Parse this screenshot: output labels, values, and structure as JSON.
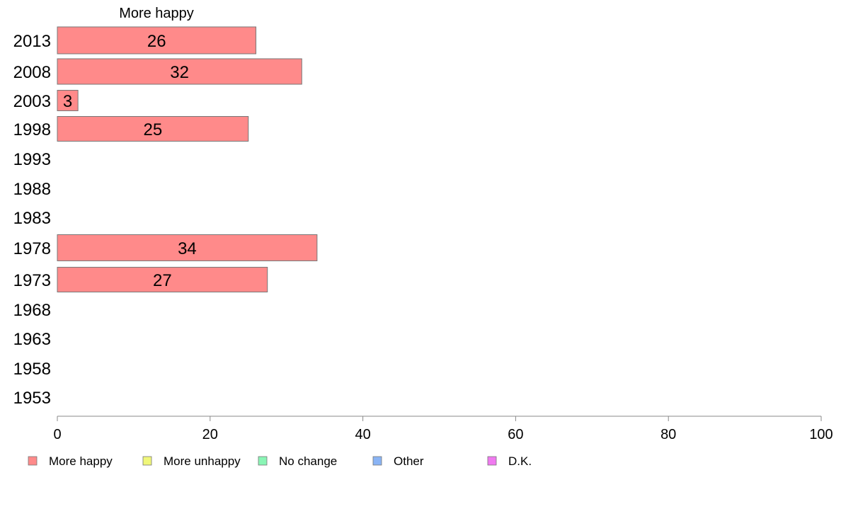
{
  "chart_data": {
    "type": "bar",
    "orientation": "horizontal",
    "title": "More happy",
    "categories": [
      "2013",
      "2008",
      "2003",
      "1998",
      "1993",
      "1988",
      "1983",
      "1978",
      "1973",
      "1968",
      "1963",
      "1958",
      "1953"
    ],
    "series": [
      {
        "name": "More happy",
        "color": "#ff8a8a",
        "values": [
          26,
          32,
          3,
          25,
          null,
          null,
          null,
          34,
          27,
          null,
          null,
          null,
          null
        ],
        "display_values": [
          26,
          32,
          2.7,
          25,
          null,
          null,
          null,
          34,
          27.5,
          null,
          null,
          null,
          null
        ]
      }
    ],
    "xlim": [
      0,
      100
    ],
    "xticks": [
      "0",
      "20",
      "40",
      "60",
      "80",
      "100"
    ],
    "grid": false,
    "legend": {
      "placement": "bottom",
      "items": [
        {
          "label": "More happy",
          "color": "#ff8a8a"
        },
        {
          "label": "More unhappy",
          "color": "#f0f77a"
        },
        {
          "label": "No change",
          "color": "#8af5b5"
        },
        {
          "label": "Other",
          "color": "#8ab4f5"
        },
        {
          "label": "D.K.",
          "color": "#f07af0"
        }
      ]
    }
  }
}
